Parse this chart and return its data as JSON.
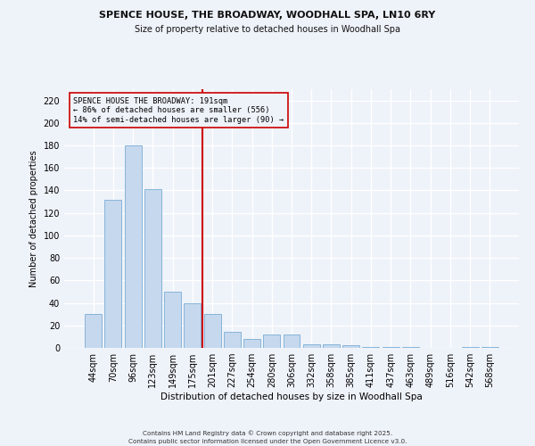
{
  "title1": "SPENCE HOUSE, THE BROADWAY, WOODHALL SPA, LN10 6RY",
  "title2": "Size of property relative to detached houses in Woodhall Spa",
  "xlabel": "Distribution of detached houses by size in Woodhall Spa",
  "ylabel": "Number of detached properties",
  "categories": [
    "44sqm",
    "70sqm",
    "96sqm",
    "123sqm",
    "149sqm",
    "175sqm",
    "201sqm",
    "227sqm",
    "254sqm",
    "280sqm",
    "306sqm",
    "332sqm",
    "358sqm",
    "385sqm",
    "411sqm",
    "437sqm",
    "463sqm",
    "489sqm",
    "516sqm",
    "542sqm",
    "568sqm"
  ],
  "values": [
    30,
    132,
    180,
    141,
    50,
    40,
    30,
    14,
    8,
    12,
    12,
    3,
    3,
    2,
    1,
    1,
    1,
    0,
    0,
    1,
    1
  ],
  "bar_color": "#c5d8ed",
  "bar_edge_color": "#7aaed6",
  "annotation_text_line1": "SPENCE HOUSE THE BROADWAY: 191sqm",
  "annotation_text_line2": "← 86% of detached houses are smaller (556)",
  "annotation_text_line3": "14% of semi-detached houses are larger (90) →",
  "vline_color": "#cc0000",
  "annotation_box_color": "#cc0000",
  "footer1": "Contains HM Land Registry data © Crown copyright and database right 2025.",
  "footer2": "Contains public sector information licensed under the Open Government Licence v3.0.",
  "bg_color": "#eef2f9",
  "grid_color": "#ffffff",
  "ylim": [
    0,
    230
  ],
  "yticks": [
    0,
    20,
    40,
    60,
    80,
    100,
    120,
    140,
    160,
    180,
    200,
    220
  ]
}
